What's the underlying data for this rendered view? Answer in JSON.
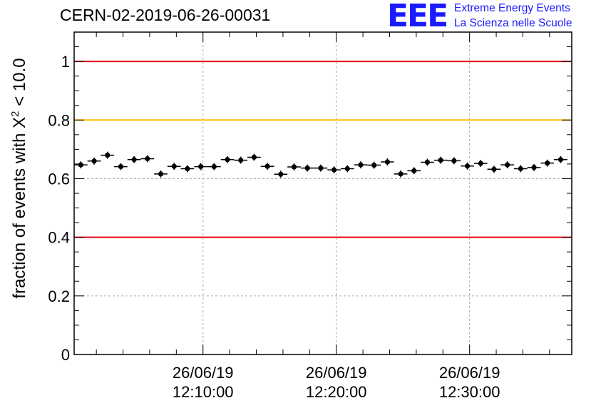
{
  "header": {
    "title": "CERN-02-2019-06-26-00031",
    "logo_text": "EEE",
    "logo_line1": "Extreme Energy Events",
    "logo_line2": "La Scienza nelle Scuole"
  },
  "colors": {
    "red_line": "#e8000b",
    "orange_line": "#ffc000",
    "marker": "#000000",
    "logo": "#1a1aff"
  },
  "chart_data": {
    "type": "scatter",
    "ylabel": "fraction of events with χ² < 10.0",
    "ylabel_parts": {
      "prefix": "fraction of events with X",
      "sup": "2",
      "suffix": " < 10.0"
    },
    "xaxis": "time",
    "xlim": [
      "2019-06-26 12:00:20",
      "2019-06-26 12:37:40"
    ],
    "ylim": [
      0,
      1.1
    ],
    "yticks": [
      0,
      0.2,
      0.4,
      0.6,
      0.8,
      1
    ],
    "ytick_labels": [
      "0",
      "0.2",
      "0.4",
      "0.6",
      "0.8",
      "1"
    ],
    "xticks": [
      {
        "time": "2019-06-26 12:10:00",
        "date": "26/06/19",
        "clock": "12:10:00"
      },
      {
        "time": "2019-06-26 12:20:00",
        "date": "26/06/19",
        "clock": "12:20:00"
      },
      {
        "time": "2019-06-26 12:30:00",
        "date": "26/06/19",
        "clock": "12:30:00"
      }
    ],
    "grid": true,
    "reference_lines": [
      {
        "y": 1.0,
        "color": "#e8000b"
      },
      {
        "y": 0.8,
        "color": "#ffc000"
      },
      {
        "y": 0.4,
        "color": "#e8000b"
      }
    ],
    "series": [
      {
        "bin_width_minutes": 1,
        "y_error": 0.012,
        "points": [
          {
            "time": "2019-06-26 12:00:50",
            "y": 0.647
          },
          {
            "time": "2019-06-26 12:01:50",
            "y": 0.66
          },
          {
            "time": "2019-06-26 12:02:50",
            "y": 0.68
          },
          {
            "time": "2019-06-26 12:03:50",
            "y": 0.641
          },
          {
            "time": "2019-06-26 12:04:50",
            "y": 0.665
          },
          {
            "time": "2019-06-26 12:05:50",
            "y": 0.668
          },
          {
            "time": "2019-06-26 12:06:50",
            "y": 0.616
          },
          {
            "time": "2019-06-26 12:07:50",
            "y": 0.642
          },
          {
            "time": "2019-06-26 12:08:50",
            "y": 0.634
          },
          {
            "time": "2019-06-26 12:09:50",
            "y": 0.641
          },
          {
            "time": "2019-06-26 12:10:50",
            "y": 0.641
          },
          {
            "time": "2019-06-26 12:11:50",
            "y": 0.665
          },
          {
            "time": "2019-06-26 12:12:50",
            "y": 0.663
          },
          {
            "time": "2019-06-26 12:13:50",
            "y": 0.673
          },
          {
            "time": "2019-06-26 12:14:50",
            "y": 0.642
          },
          {
            "time": "2019-06-26 12:15:50",
            "y": 0.615
          },
          {
            "time": "2019-06-26 12:16:50",
            "y": 0.64
          },
          {
            "time": "2019-06-26 12:17:50",
            "y": 0.636
          },
          {
            "time": "2019-06-26 12:18:50",
            "y": 0.636
          },
          {
            "time": "2019-06-26 12:19:50",
            "y": 0.63
          },
          {
            "time": "2019-06-26 12:20:50",
            "y": 0.634
          },
          {
            "time": "2019-06-26 12:21:50",
            "y": 0.647
          },
          {
            "time": "2019-06-26 12:22:50",
            "y": 0.646
          },
          {
            "time": "2019-06-26 12:23:50",
            "y": 0.657
          },
          {
            "time": "2019-06-26 12:24:50",
            "y": 0.616
          },
          {
            "time": "2019-06-26 12:25:50",
            "y": 0.627
          },
          {
            "time": "2019-06-26 12:26:50",
            "y": 0.656
          },
          {
            "time": "2019-06-26 12:27:50",
            "y": 0.663
          },
          {
            "time": "2019-06-26 12:28:50",
            "y": 0.661
          },
          {
            "time": "2019-06-26 12:29:50",
            "y": 0.643
          },
          {
            "time": "2019-06-26 12:30:50",
            "y": 0.652
          },
          {
            "time": "2019-06-26 12:31:50",
            "y": 0.632
          },
          {
            "time": "2019-06-26 12:32:50",
            "y": 0.647
          },
          {
            "time": "2019-06-26 12:33:50",
            "y": 0.634
          },
          {
            "time": "2019-06-26 12:34:50",
            "y": 0.638
          },
          {
            "time": "2019-06-26 12:35:50",
            "y": 0.653
          },
          {
            "time": "2019-06-26 12:36:50",
            "y": 0.665
          }
        ]
      }
    ]
  }
}
